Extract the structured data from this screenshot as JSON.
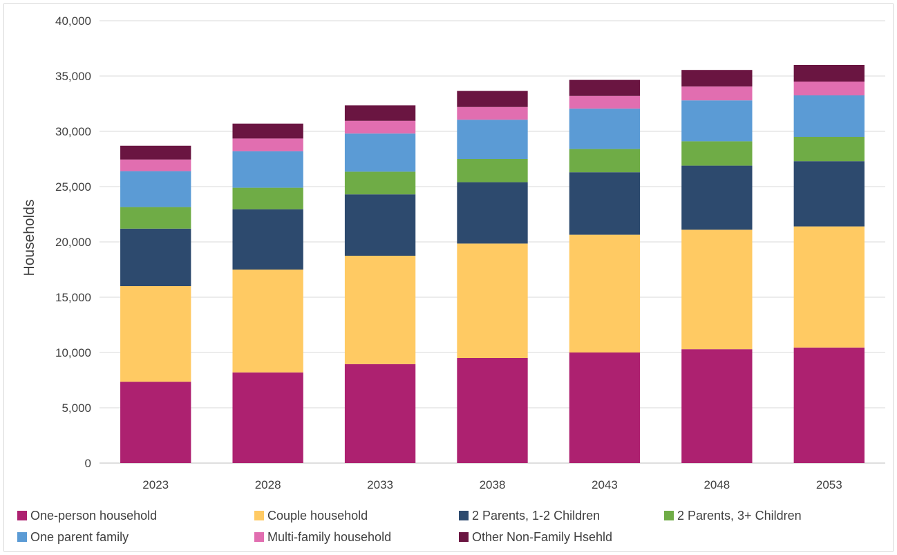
{
  "chart_data": {
    "type": "bar",
    "stacked": true,
    "title": "",
    "xlabel": "",
    "ylabel": "Households",
    "ylim": [
      0,
      40000
    ],
    "yticks": [
      0,
      5000,
      10000,
      15000,
      20000,
      25000,
      30000,
      35000,
      40000
    ],
    "ytick_labels": [
      "0",
      "5,000",
      "10,000",
      "15,000",
      "20,000",
      "25,000",
      "30,000",
      "35,000",
      "40,000"
    ],
    "grid": true,
    "legend_position": "bottom",
    "categories": [
      "2023",
      "2028",
      "2033",
      "2038",
      "2043",
      "2048",
      "2053"
    ],
    "series": [
      {
        "name": "One-person household",
        "color": "#ad2170",
        "values": [
          7350,
          8200,
          8950,
          9500,
          10000,
          10300,
          10450
        ]
      },
      {
        "name": "Couple household",
        "color": "#ffca63",
        "values": [
          8650,
          9300,
          9800,
          10350,
          10650,
          10800,
          10950
        ]
      },
      {
        "name": "2 Parents, 1-2 Children",
        "color": "#2d4a6e",
        "values": [
          5200,
          5450,
          5550,
          5550,
          5650,
          5800,
          5900
        ]
      },
      {
        "name": "2 Parents, 3+ Children",
        "color": "#6fac46",
        "values": [
          1950,
          1950,
          2050,
          2100,
          2100,
          2200,
          2200
        ]
      },
      {
        "name": "One parent family",
        "color": "#5b9bd5",
        "values": [
          3250,
          3300,
          3450,
          3550,
          3650,
          3700,
          3750
        ]
      },
      {
        "name": "Multi-family household",
        "color": "#e16eb0",
        "values": [
          1050,
          1150,
          1150,
          1150,
          1150,
          1250,
          1250
        ]
      },
      {
        "name": "Other Non-Family Hsehld",
        "color": "#6a1541",
        "values": [
          1250,
          1350,
          1400,
          1450,
          1450,
          1500,
          1500
        ]
      }
    ]
  }
}
